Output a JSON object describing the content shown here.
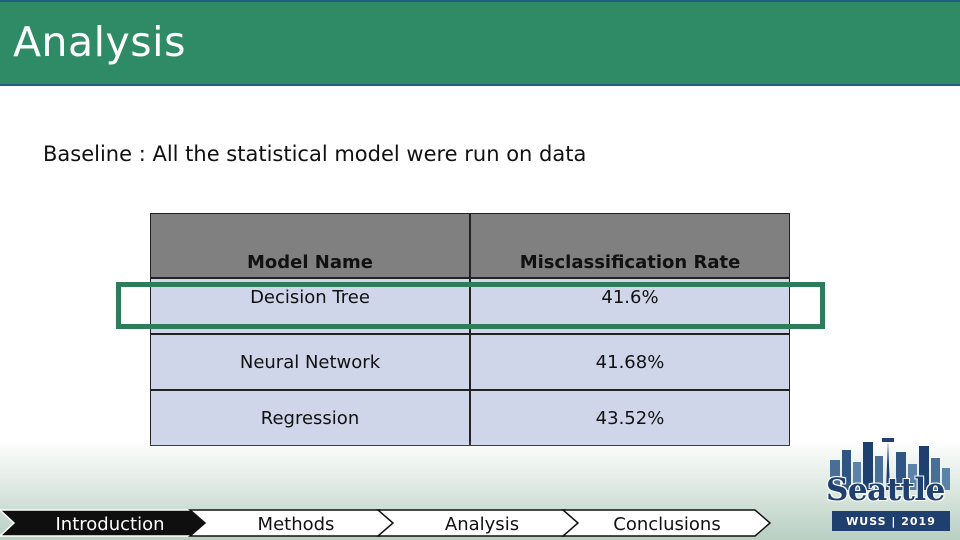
{
  "slide": {
    "title": "Analysis",
    "baseline_text": "Baseline : All the statistical model were run on data"
  },
  "table": {
    "headers": [
      "Model Name",
      "Misclassification Rate"
    ],
    "rows": [
      {
        "model": "Decision Tree",
        "rate": "41.6%"
      },
      {
        "model": "Neural Network",
        "rate": "41.68%"
      },
      {
        "model": "Regression",
        "rate": "43.52%"
      }
    ]
  },
  "nav": {
    "items": [
      "Introduction",
      "Methods",
      "Analysis",
      "Conclusions"
    ]
  },
  "logo": {
    "city": "Seattle",
    "event": "WUSS | 2019"
  },
  "colors": {
    "title_bar": "#2e8b66",
    "table_header": "#808080",
    "table_row": "#cfd6ea",
    "highlight": "#2e7d5a",
    "nav_active": "#0f0f0f"
  }
}
